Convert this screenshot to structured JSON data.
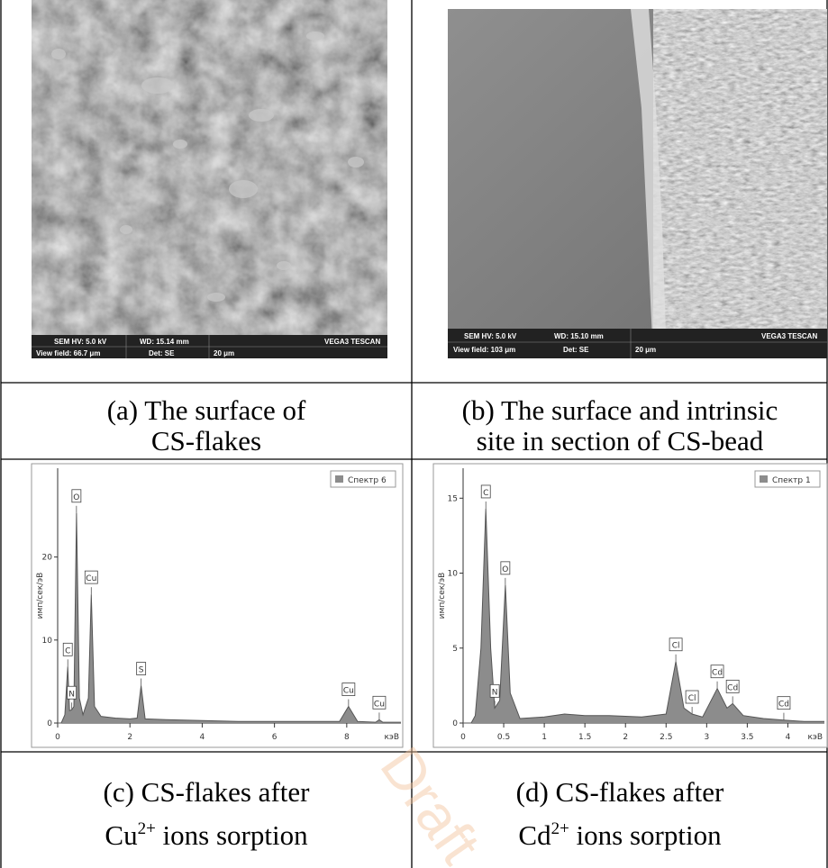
{
  "panels": [
    {
      "caption": [
        "(a) The surface of",
        "CS-flakes"
      ],
      "sem_bar": [
        "SEM HV: 5.0 kV",
        "WD: 15.14 mm",
        "VEGA3 TESCAN",
        "View field: 66.7 μm",
        "Det: SE",
        "20 μm"
      ]
    },
    {
      "caption": [
        "(b) The surface and intrinsic",
        "site in section of CS-bead"
      ],
      "sem_bar": [
        "SEM HV: 5.0 kV",
        "WD: 15.10 mm",
        "VEGA3 TESCAN",
        "View field: 103 μm",
        "Det: SE",
        "20 μm"
      ]
    },
    {
      "caption": [
        "(c) CS-flakes after"
      ],
      "ion": "Cu",
      "charge": "2+",
      "rest": " ions sorption"
    },
    {
      "caption": [
        "(d) CS-flakes after"
      ],
      "ion": "Cd",
      "charge": "2+",
      "rest": " ions sorption"
    }
  ],
  "watermark": "Draft",
  "chart_data": [
    {
      "type": "area",
      "y_label": "имп/сек/эВ",
      "x_label": "кэВ",
      "xlim": [
        0,
        9.5
      ],
      "xticks": [
        0,
        2,
        4,
        6,
        8
      ],
      "ylim": [
        0,
        30.7
      ],
      "yticks": [
        0,
        10,
        20
      ],
      "series": [
        {
          "name": "Спектр 6",
          "color": "#8c8c8c",
          "x": [
            0,
            0.1,
            0.2,
            0.28,
            0.33,
            0.39,
            0.45,
            0.52,
            0.6,
            0.7,
            0.85,
            0.93,
            1.02,
            1.2,
            1.6,
            2.0,
            2.2,
            2.31,
            2.42,
            3,
            4,
            5,
            6,
            7,
            7.8,
            8.05,
            8.3,
            8.8,
            8.9,
            9.0,
            9.5
          ],
          "values": [
            0,
            0,
            1,
            6.8,
            1.5,
            1.6,
            2,
            25.3,
            3,
            1,
            3,
            15.5,
            2,
            0.8,
            0.6,
            0.5,
            0.6,
            4.5,
            0.5,
            0.4,
            0.3,
            0.2,
            0.2,
            0.2,
            0.2,
            2,
            0.2,
            0.1,
            0.4,
            0.1,
            0.1
          ]
        }
      ],
      "annotations": [
        {
          "text": "C",
          "x": 0.28,
          "y": 6.8
        },
        {
          "text": "N",
          "x": 0.39,
          "y": 1.6
        },
        {
          "text": "O",
          "x": 0.52,
          "y": 25.3
        },
        {
          "text": "Cu",
          "x": 0.93,
          "y": 15.5
        },
        {
          "text": "S",
          "x": 2.31,
          "y": 4.5
        },
        {
          "text": "Cu",
          "x": 8.05,
          "y": 2
        },
        {
          "text": "Cu",
          "x": 8.9,
          "y": 0.4
        }
      ]
    },
    {
      "type": "area",
      "y_label": "имп/сек/эВ",
      "x_label": "кэВ",
      "xlim": [
        0,
        4.45
      ],
      "xticks": [
        0,
        0.5,
        1,
        1.5,
        2,
        2.5,
        3,
        3.5,
        4
      ],
      "ylim": [
        0,
        17
      ],
      "yticks": [
        0,
        5,
        10,
        15
      ],
      "series": [
        {
          "name": "Спектр 1",
          "color": "#8c8c8c",
          "x": [
            0,
            0.1,
            0.15,
            0.22,
            0.28,
            0.34,
            0.39,
            0.45,
            0.52,
            0.58,
            0.7,
            1,
            1.25,
            1.5,
            1.8,
            2.2,
            2.5,
            2.62,
            2.72,
            2.82,
            2.95,
            3.13,
            3.25,
            3.32,
            3.45,
            3.7,
            3.95,
            4.2,
            4.45
          ],
          "values": [
            0,
            0,
            0.5,
            5,
            14.3,
            5,
            1,
            1.5,
            9.2,
            2,
            0.3,
            0.4,
            0.6,
            0.5,
            0.5,
            0.4,
            0.6,
            4.1,
            1,
            0.6,
            0.4,
            2.3,
            1,
            1.3,
            0.5,
            0.3,
            0.2,
            0.1,
            0.1
          ]
        }
      ],
      "annotations": [
        {
          "text": "C",
          "x": 0.28,
          "y": 14.3
        },
        {
          "text": "N",
          "x": 0.39,
          "y": 1
        },
        {
          "text": "O",
          "x": 0.52,
          "y": 9.2
        },
        {
          "text": "Cl",
          "x": 2.62,
          "y": 4.1
        },
        {
          "text": "Cl",
          "x": 2.82,
          "y": 0.6
        },
        {
          "text": "Cd",
          "x": 3.13,
          "y": 2.3
        },
        {
          "text": "Cd",
          "x": 3.32,
          "y": 1.3
        },
        {
          "text": "Cd",
          "x": 3.95,
          "y": 0.2
        }
      ]
    }
  ]
}
